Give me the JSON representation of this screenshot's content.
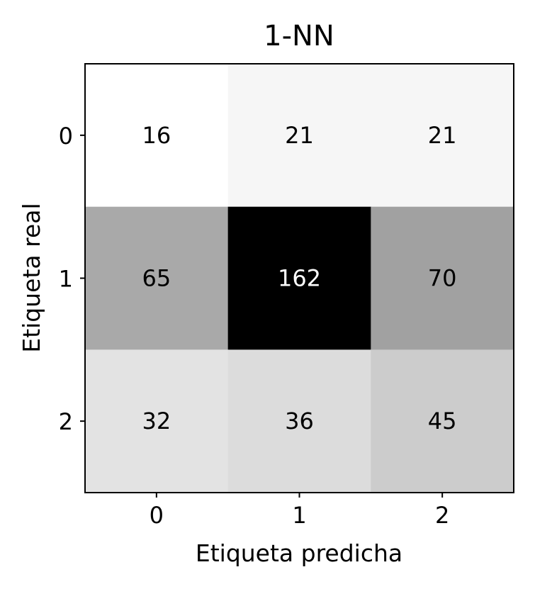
{
  "chart_data": {
    "type": "heatmap",
    "title": "1-NN",
    "xlabel": "Etiqueta predicha",
    "ylabel": "Etiqueta real",
    "x_categories": [
      "0",
      "1",
      "2"
    ],
    "y_categories": [
      "0",
      "1",
      "2"
    ],
    "values": [
      [
        16,
        21,
        21
      ],
      [
        65,
        162,
        70
      ],
      [
        32,
        36,
        45
      ]
    ],
    "colormap": "grayscale (low = white, high = black)",
    "grid": false
  }
}
